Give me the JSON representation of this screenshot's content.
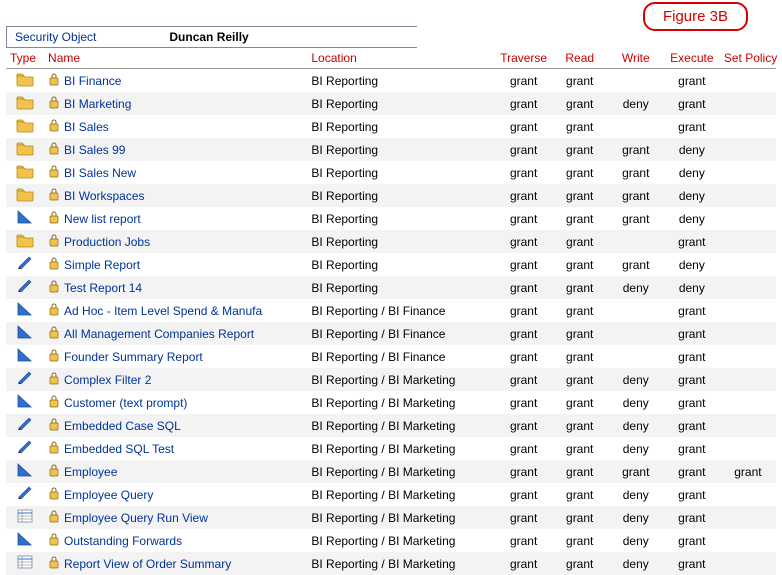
{
  "figure_label": "Figure 3B",
  "header": {
    "label": "Security Object",
    "value": "Duncan Reilly"
  },
  "columns": {
    "type": "Type",
    "name": "Name",
    "location": "Location",
    "traverse": "Traverse",
    "read": "Read",
    "write": "Write",
    "execute": "Execute",
    "setpolicy": "Set Policy"
  },
  "icon_colors": {
    "folder_fill": "#f2c24b",
    "folder_stroke": "#b38a1c",
    "triangle_fill": "#2f6fd0",
    "triangle_stroke": "#1d4e9a",
    "pencil_fill": "#2f6fd0",
    "pencil_stroke": "#1d4e9a",
    "gridview_fill": "#ffffff",
    "gridview_stroke": "#7e8a99",
    "gridview_accent": "#2f6fd0",
    "lock_fill": "#f2c24b",
    "lock_stroke": "#8a6a15"
  },
  "rows": [
    {
      "type": "folder",
      "name": "BI Finance",
      "location": "BI Reporting",
      "traverse": "grant",
      "read": "grant",
      "write": "",
      "execute": "grant",
      "setpolicy": ""
    },
    {
      "type": "folder",
      "name": "BI Marketing",
      "location": "BI Reporting",
      "traverse": "grant",
      "read": "grant",
      "write": "deny",
      "execute": "grant",
      "setpolicy": ""
    },
    {
      "type": "folder",
      "name": "BI Sales",
      "location": "BI Reporting",
      "traverse": "grant",
      "read": "grant",
      "write": "",
      "execute": "grant",
      "setpolicy": ""
    },
    {
      "type": "folder",
      "name": "BI Sales 99",
      "location": "BI Reporting",
      "traverse": "grant",
      "read": "grant",
      "write": "grant",
      "execute": "deny",
      "setpolicy": ""
    },
    {
      "type": "folder",
      "name": "BI Sales New",
      "location": "BI Reporting",
      "traverse": "grant",
      "read": "grant",
      "write": "grant",
      "execute": "deny",
      "setpolicy": ""
    },
    {
      "type": "folder",
      "name": "BI Workspaces",
      "location": "BI Reporting",
      "traverse": "grant",
      "read": "grant",
      "write": "grant",
      "execute": "deny",
      "setpolicy": ""
    },
    {
      "type": "triangle",
      "name": "New list report",
      "location": "BI Reporting",
      "traverse": "grant",
      "read": "grant",
      "write": "grant",
      "execute": "deny",
      "setpolicy": ""
    },
    {
      "type": "folder",
      "name": "Production Jobs",
      "location": "BI Reporting",
      "traverse": "grant",
      "read": "grant",
      "write": "",
      "execute": "grant",
      "setpolicy": ""
    },
    {
      "type": "pencil",
      "name": "Simple Report",
      "location": "BI Reporting",
      "traverse": "grant",
      "read": "grant",
      "write": "grant",
      "execute": "deny",
      "setpolicy": ""
    },
    {
      "type": "pencil",
      "name": "Test Report 14",
      "location": "BI Reporting",
      "traverse": "grant",
      "read": "grant",
      "write": "deny",
      "execute": "deny",
      "setpolicy": ""
    },
    {
      "type": "triangle",
      "name": "Ad Hoc - Item Level Spend & Manufa",
      "location": "BI Reporting / BI Finance",
      "traverse": "grant",
      "read": "grant",
      "write": "",
      "execute": "grant",
      "setpolicy": ""
    },
    {
      "type": "triangle",
      "name": "All Management Companies Report",
      "location": "BI Reporting / BI Finance",
      "traverse": "grant",
      "read": "grant",
      "write": "",
      "execute": "grant",
      "setpolicy": ""
    },
    {
      "type": "triangle",
      "name": "Founder Summary Report",
      "location": "BI Reporting / BI Finance",
      "traverse": "grant",
      "read": "grant",
      "write": "",
      "execute": "grant",
      "setpolicy": ""
    },
    {
      "type": "pencil",
      "name": "Complex Filter 2",
      "location": "BI Reporting / BI Marketing",
      "traverse": "grant",
      "read": "grant",
      "write": "deny",
      "execute": "grant",
      "setpolicy": ""
    },
    {
      "type": "triangle",
      "name": "Customer (text prompt)",
      "location": "BI Reporting / BI Marketing",
      "traverse": "grant",
      "read": "grant",
      "write": "deny",
      "execute": "grant",
      "setpolicy": ""
    },
    {
      "type": "pencil",
      "name": "Embedded Case SQL",
      "location": "BI Reporting / BI Marketing",
      "traverse": "grant",
      "read": "grant",
      "write": "deny",
      "execute": "grant",
      "setpolicy": ""
    },
    {
      "type": "pencil",
      "name": "Embedded SQL Test",
      "location": "BI Reporting / BI Marketing",
      "traverse": "grant",
      "read": "grant",
      "write": "deny",
      "execute": "grant",
      "setpolicy": ""
    },
    {
      "type": "triangle",
      "name": "Employee",
      "location": "BI Reporting / BI Marketing",
      "traverse": "grant",
      "read": "grant",
      "write": "grant",
      "execute": "grant",
      "setpolicy": "grant"
    },
    {
      "type": "pencil",
      "name": "Employee Query",
      "location": "BI Reporting / BI Marketing",
      "traverse": "grant",
      "read": "grant",
      "write": "deny",
      "execute": "grant",
      "setpolicy": ""
    },
    {
      "type": "gridview",
      "name": "Employee Query Run View",
      "location": "BI Reporting / BI Marketing",
      "traverse": "grant",
      "read": "grant",
      "write": "deny",
      "execute": "grant",
      "setpolicy": ""
    },
    {
      "type": "triangle",
      "name": "Outstanding Forwards",
      "location": "BI Reporting / BI Marketing",
      "traverse": "grant",
      "read": "grant",
      "write": "deny",
      "execute": "grant",
      "setpolicy": ""
    },
    {
      "type": "gridview",
      "name": "Report View of Order Summary",
      "location": "BI Reporting / BI Marketing",
      "traverse": "grant",
      "read": "grant",
      "write": "deny",
      "execute": "grant",
      "setpolicy": ""
    }
  ]
}
